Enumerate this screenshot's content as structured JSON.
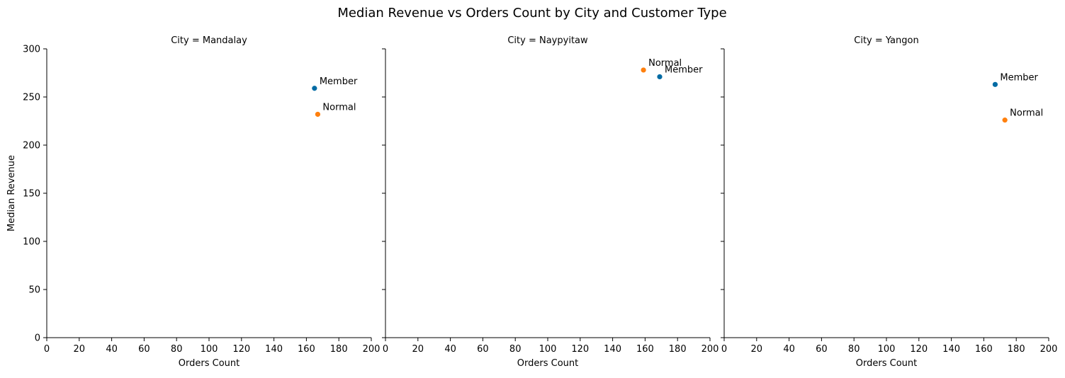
{
  "figure": {
    "title": "Median Revenue vs Orders Count by City and Customer Type"
  },
  "chart_data": [
    {
      "type": "scatter",
      "title": "City = Mandalay",
      "xlabel": "Orders Count",
      "ylabel": "Median Revenue",
      "xlim": [
        0,
        200
      ],
      "ylim": [
        0,
        300
      ],
      "xticks": [
        0,
        20,
        40,
        60,
        80,
        100,
        120,
        140,
        160,
        180,
        200
      ],
      "yticks": [
        0,
        50,
        100,
        150,
        200,
        250,
        300
      ],
      "grid": false,
      "series": [
        {
          "name": "Member",
          "color": "#006ba4",
          "points": [
            {
              "x": 165,
              "y": 259
            }
          ]
        },
        {
          "name": "Normal",
          "color": "#ff800e",
          "points": [
            {
              "x": 167,
              "y": 232
            }
          ]
        }
      ]
    },
    {
      "type": "scatter",
      "title": "City = Naypyitaw",
      "xlabel": "Orders Count",
      "ylabel": "",
      "xlim": [
        0,
        200
      ],
      "ylim": [
        0,
        300
      ],
      "xticks": [
        0,
        20,
        40,
        60,
        80,
        100,
        120,
        140,
        160,
        180,
        200
      ],
      "yticks": [
        0,
        50,
        100,
        150,
        200,
        250,
        300
      ],
      "grid": false,
      "series": [
        {
          "name": "Member",
          "color": "#006ba4",
          "points": [
            {
              "x": 169,
              "y": 271
            }
          ]
        },
        {
          "name": "Normal",
          "color": "#ff800e",
          "points": [
            {
              "x": 159,
              "y": 278
            }
          ]
        }
      ]
    },
    {
      "type": "scatter",
      "title": "City = Yangon",
      "xlabel": "Orders Count",
      "ylabel": "",
      "xlim": [
        0,
        200
      ],
      "ylim": [
        0,
        300
      ],
      "xticks": [
        0,
        20,
        40,
        60,
        80,
        100,
        120,
        140,
        160,
        180,
        200
      ],
      "yticks": [
        0,
        50,
        100,
        150,
        200,
        250,
        300
      ],
      "grid": false,
      "series": [
        {
          "name": "Member",
          "color": "#006ba4",
          "points": [
            {
              "x": 167,
              "y": 263
            }
          ]
        },
        {
          "name": "Normal",
          "color": "#ff800e",
          "points": [
            {
              "x": 173,
              "y": 226
            }
          ]
        }
      ]
    }
  ]
}
